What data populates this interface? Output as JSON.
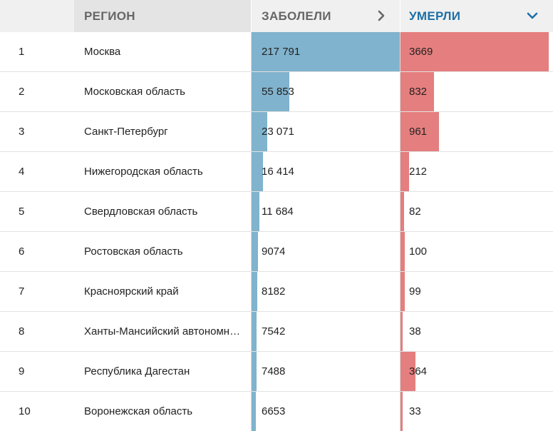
{
  "header": {
    "num": "",
    "region": "РЕГИОН",
    "cases": "ЗАБОЛЕЛИ",
    "deaths": "УМЕРЛИ"
  },
  "colors": {
    "cases_bar": "#80b3cd",
    "deaths_bar": "#e57e7e",
    "active_header": "#1d6fa5"
  },
  "icons": {
    "cases_sort": "chevron-right-icon",
    "deaths_sort": "chevron-down-icon"
  },
  "rows": [
    {
      "num": "1",
      "region": "Москва",
      "cases": "217 791",
      "deaths": "3669",
      "cases_value": 217791,
      "deaths_value": 3669
    },
    {
      "num": "2",
      "region": "Московская область",
      "cases": "55 853",
      "deaths": "832",
      "cases_value": 55853,
      "deaths_value": 832
    },
    {
      "num": "3",
      "region": "Санкт-Петербург",
      "cases": "23 071",
      "deaths": "961",
      "cases_value": 23071,
      "deaths_value": 961
    },
    {
      "num": "4",
      "region": "Нижегородская область",
      "cases": "16 414",
      "deaths": "212",
      "cases_value": 16414,
      "deaths_value": 212
    },
    {
      "num": "5",
      "region": "Свердловская область",
      "cases": "11 684",
      "deaths": "82",
      "cases_value": 11684,
      "deaths_value": 82
    },
    {
      "num": "6",
      "region": "Ростовская область",
      "cases": "9074",
      "deaths": "100",
      "cases_value": 9074,
      "deaths_value": 100
    },
    {
      "num": "7",
      "region": "Красноярский край",
      "cases": "8182",
      "deaths": "99",
      "cases_value": 8182,
      "deaths_value": 99
    },
    {
      "num": "8",
      "region": "Ханты-Мансийский автономный округ",
      "cases": "7542",
      "deaths": "38",
      "cases_value": 7542,
      "deaths_value": 38
    },
    {
      "num": "9",
      "region": "Республика Дагестан",
      "cases": "7488",
      "deaths": "364",
      "cases_value": 7488,
      "deaths_value": 364
    },
    {
      "num": "10",
      "region": "Воронежская область",
      "cases": "6653",
      "deaths": "33",
      "cases_value": 6653,
      "deaths_value": 33
    }
  ]
}
